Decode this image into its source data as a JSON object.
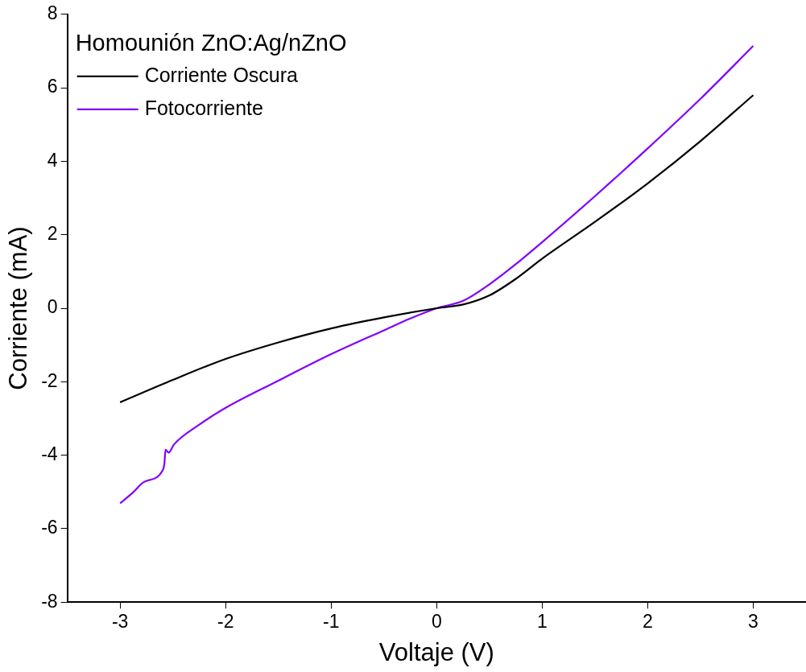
{
  "chart_data": {
    "type": "line",
    "xlabel": "Voltaje (V)",
    "ylabel": "Corriente (mA)",
    "legend_title": "Homounión ZnO:Ag/nZnO",
    "legend": "top left",
    "grid": false,
    "marker": "none",
    "line_style": "solid",
    "xlim": [
      -3.5,
      3.5
    ],
    "xticks": [
      -3,
      -2,
      -1,
      0,
      1,
      2,
      3
    ],
    "ylim": [
      -8,
      8
    ],
    "yticks": [
      -8,
      -6,
      -4,
      -2,
      0,
      2,
      4,
      6,
      8
    ],
    "series": [
      {
        "name": "Corriente Oscura",
        "color": "#000000",
        "x": [
          -3,
          -2.5,
          -2,
          -1.5,
          -1,
          -0.5,
          0,
          0.25,
          0.5,
          0.75,
          1,
          1.5,
          2,
          2.5,
          3
        ],
        "values": [
          -2.56,
          -1.95,
          -1.38,
          -0.93,
          -0.55,
          -0.25,
          0,
          0.1,
          0.35,
          0.8,
          1.35,
          2.35,
          3.4,
          4.55,
          5.8
        ]
      },
      {
        "name": "Fotocorriente",
        "color": "#8000ff",
        "x": [
          -3,
          -2.88,
          -2.78,
          -2.6,
          -2.58,
          -2.57,
          -2.54,
          -2.49,
          -2.25,
          -2,
          -1.5,
          -1,
          -0.5,
          -0.25,
          0,
          0.25,
          0.5,
          0.75,
          1,
          1.5,
          2,
          2.5,
          3
        ],
        "values": [
          -5.31,
          -5.02,
          -4.74,
          -4.43,
          -4.22,
          -3.85,
          -3.93,
          -3.71,
          -3.17,
          -2.71,
          -1.97,
          -1.25,
          -0.6,
          -0.28,
          0,
          0.2,
          0.65,
          1.2,
          1.8,
          3.05,
          4.35,
          5.7,
          7.14
        ]
      }
    ]
  }
}
